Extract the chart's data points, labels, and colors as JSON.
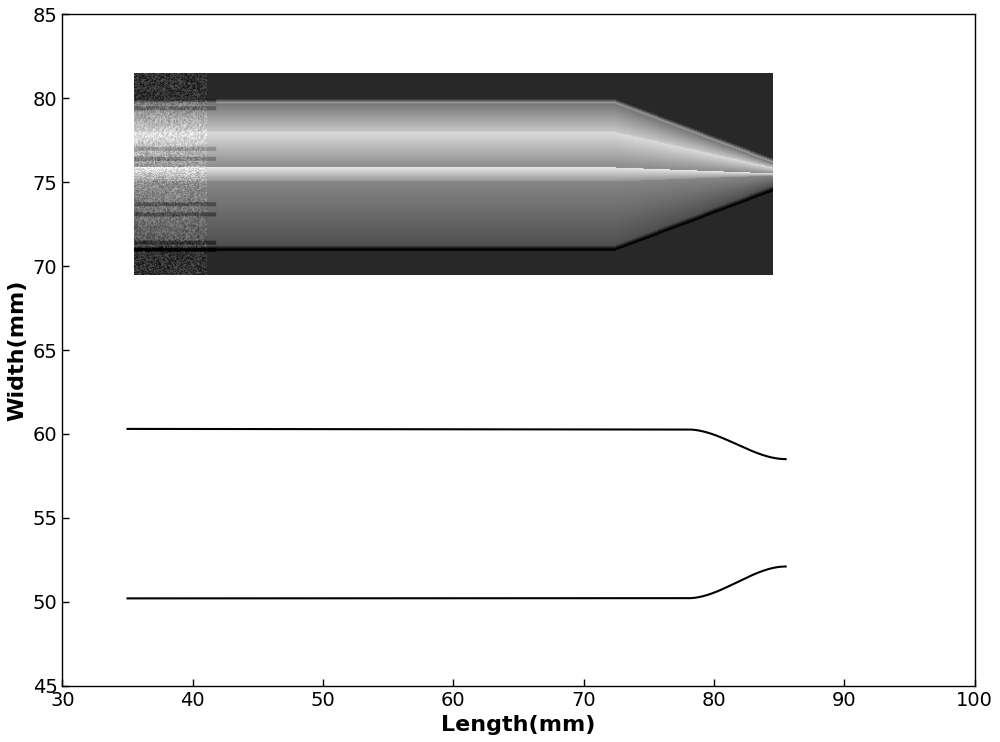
{
  "xlim": [
    30,
    100
  ],
  "ylim": [
    45,
    85
  ],
  "xticks": [
    30,
    40,
    50,
    60,
    70,
    80,
    90,
    100
  ],
  "yticks": [
    45,
    50,
    55,
    60,
    65,
    70,
    75,
    80,
    85
  ],
  "xlabel": "Length(mm)",
  "ylabel": "Width(mm)",
  "line_color": "#000000",
  "line_width": 1.5,
  "image_extent": [
    35.5,
    84.5,
    69.5,
    81.5
  ],
  "fig_width": 10.0,
  "fig_height": 7.42,
  "dpi": 100,
  "tick_fontsize": 14,
  "label_fontsize": 16,
  "background_color": "#ffffff"
}
